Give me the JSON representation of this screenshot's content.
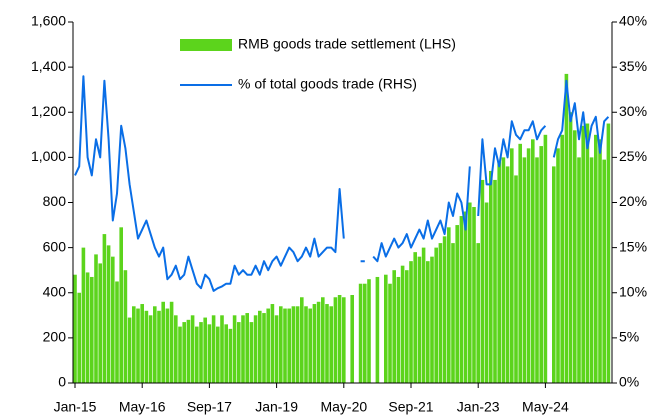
{
  "chart_data": {
    "type": "bar_line",
    "categories": [
      "Jan-15",
      null,
      null,
      null,
      null,
      null,
      null,
      null,
      null,
      null,
      null,
      null,
      null,
      null,
      null,
      null,
      "May-16",
      null,
      null,
      null,
      null,
      null,
      null,
      null,
      null,
      null,
      null,
      null,
      null,
      null,
      null,
      null,
      "Sep-17",
      null,
      null,
      null,
      null,
      null,
      null,
      null,
      null,
      null,
      null,
      null,
      null,
      null,
      null,
      null,
      "Jan-19",
      null,
      null,
      null,
      null,
      null,
      null,
      null,
      null,
      null,
      null,
      null,
      null,
      null,
      null,
      null,
      "May-20",
      null,
      null,
      null,
      null,
      null,
      null,
      null,
      null,
      null,
      null,
      null,
      null,
      null,
      null,
      null,
      "Sep-21",
      null,
      null,
      null,
      null,
      null,
      null,
      null,
      null,
      null,
      null,
      null,
      null,
      null,
      null,
      null,
      "Jan-23",
      null,
      null,
      null,
      null,
      null,
      null,
      null,
      null,
      null,
      null,
      null,
      null,
      null,
      null,
      null,
      "May-24",
      null,
      null,
      null,
      null,
      null,
      null,
      null,
      null,
      null,
      null,
      null,
      null,
      null,
      null,
      null
    ],
    "series": [
      {
        "name": "RMB goods trade settlement (LHS)",
        "color": "#5cd41c",
        "kind": "bar",
        "values": [
          480,
          400,
          600,
          490,
          470,
          570,
          530,
          660,
          610,
          560,
          450,
          690,
          500,
          290,
          340,
          330,
          350,
          320,
          300,
          340,
          320,
          360,
          330,
          360,
          300,
          250,
          270,
          280,
          300,
          250,
          270,
          290,
          260,
          300,
          250,
          300,
          260,
          240,
          300,
          270,
          300,
          310,
          270,
          300,
          320,
          310,
          330,
          350,
          300,
          340,
          330,
          330,
          340,
          340,
          380,
          340,
          330,
          350,
          360,
          380,
          350,
          340,
          380,
          390,
          380,
          null,
          390,
          null,
          440,
          440,
          460,
          null,
          470,
          null,
          480,
          440,
          500,
          470,
          520,
          500,
          540,
          580,
          560,
          600,
          540,
          560,
          600,
          620,
          650,
          690,
          620,
          700,
          740,
          760,
          800,
          780,
          620,
          900,
          800,
          940,
          900,
          980,
          1000,
          960,
          1040,
          920,
          1060,
          1000,
          1040,
          1080,
          1000,
          1050,
          1100,
          null,
          960,
          1040,
          1100,
          1370,
          1200,
          1120,
          1000,
          1140,
          1150,
          1000,
          1100,
          1080,
          990,
          1150
        ]
      },
      {
        "name": "% of total goods trade (RHS)",
        "color": "#0a6ee6",
        "kind": "line",
        "axis": "y2",
        "values": [
          23,
          24,
          34,
          25,
          23,
          27,
          25,
          33.5,
          27,
          18,
          21,
          28.5,
          26,
          22,
          19,
          16,
          17,
          18,
          16.5,
          15,
          14,
          15,
          11.5,
          12,
          13,
          11.5,
          12,
          14,
          12.5,
          11,
          10.5,
          12,
          11.5,
          10.2,
          10.5,
          10.7,
          11,
          11,
          13,
          12,
          12.5,
          12,
          12,
          13,
          12,
          13.5,
          12.5,
          13.5,
          14,
          13,
          14,
          15,
          14.5,
          13.5,
          14,
          15,
          14,
          16,
          14,
          14.5,
          15,
          15,
          14.5,
          21.5,
          16,
          null,
          null,
          null,
          13.5,
          13.5,
          null,
          14,
          13.5,
          15.5,
          14,
          15,
          16,
          15,
          15.5,
          16.5,
          15,
          16,
          17,
          16,
          18,
          16,
          17,
          18,
          16.5,
          20,
          18.5,
          21,
          20,
          17,
          24,
          null,
          18.5,
          27,
          22,
          22,
          26,
          24,
          27,
          25,
          29,
          27.5,
          27,
          28,
          28,
          29,
          27,
          28,
          28.5,
          null,
          25,
          27,
          28,
          33.5,
          29,
          31,
          27,
          30,
          26,
          28.5,
          29.5,
          25.5,
          29,
          29.5
        ]
      }
    ],
    "ylim": [
      0,
      1600
    ],
    "yticks": [
      0,
      200,
      400,
      600,
      800,
      {
        "value": 1000,
        "label": "1,000"
      },
      {
        "value": 1200,
        "label": "1,200"
      },
      {
        "value": 1400,
        "label": "1,400"
      },
      {
        "value": 1600,
        "label": "1,600"
      }
    ],
    "y2lim": [
      0,
      40
    ],
    "y2ticks": [
      {
        "value": 0,
        "label": "0%"
      },
      {
        "value": 5,
        "label": "5%"
      },
      {
        "value": 10,
        "label": "10%"
      },
      {
        "value": 15,
        "label": "15%"
      },
      {
        "value": 20,
        "label": "20%"
      },
      {
        "value": 25,
        "label": "25%"
      },
      {
        "value": 30,
        "label": "30%"
      },
      {
        "value": 35,
        "label": "35%"
      },
      {
        "value": 40,
        "label": "40%"
      }
    ],
    "legend": "top"
  }
}
